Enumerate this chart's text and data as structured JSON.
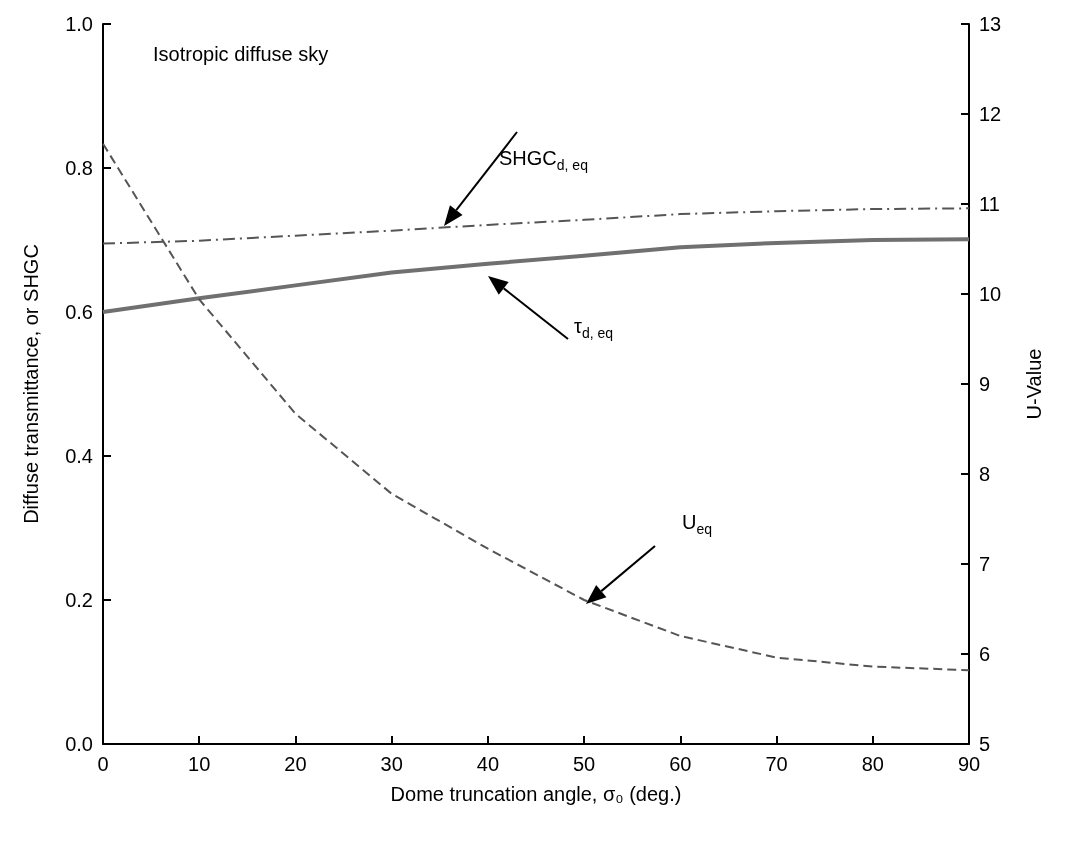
{
  "chart_data": {
    "type": "line",
    "xlabel": "Dome truncation angle, σ₀ (deg.)",
    "ylabel": "Diffuse transmittance, or SHGC",
    "y2label": "U-Value",
    "x": [
      0,
      10,
      20,
      30,
      40,
      50,
      60,
      70,
      80,
      90
    ],
    "series": [
      {
        "color": "#707070",
        "line_style": "solid",
        "values": [
          0.6,
          0.619,
          0.637,
          0.655,
          0.667,
          0.678,
          0.69,
          0.696,
          0.7,
          0.701
        ]
      },
      {
        "color": "#555555",
        "line_style": "dashdot",
        "values": [
          0.695,
          0.699,
          0.706,
          0.713,
          0.721,
          0.728,
          0.736,
          0.74,
          0.743,
          0.744
        ]
      },
      {
        "color": "#555555",
        "line_style": "dashed",
        "axis": "y2",
        "values": [
          11.67,
          9.94,
          8.67,
          7.78,
          7.17,
          6.6,
          6.2,
          5.96,
          5.86,
          5.82
        ]
      }
    ],
    "xlim": [
      0,
      90
    ],
    "xticks": [
      0,
      10,
      20,
      30,
      40,
      50,
      60,
      70,
      80,
      90
    ],
    "ylim": [
      0,
      1
    ],
    "yticks": [
      {
        "value": 0,
        "label": "0.0"
      },
      0.2,
      0.4,
      0.6,
      0.8,
      {
        "value": 1,
        "label": "1.0"
      }
    ],
    "y2lim": [
      5,
      13
    ],
    "y2ticks": [
      5,
      6,
      7,
      8,
      9,
      10,
      11,
      12,
      13
    ],
    "grid": false,
    "marker": "none",
    "annotations": [
      "Isotropic diffuse sky",
      "SHGC$_{d, eq}$",
      "τ$_{d, eq}$",
      "U$_{eq}$"
    ]
  }
}
